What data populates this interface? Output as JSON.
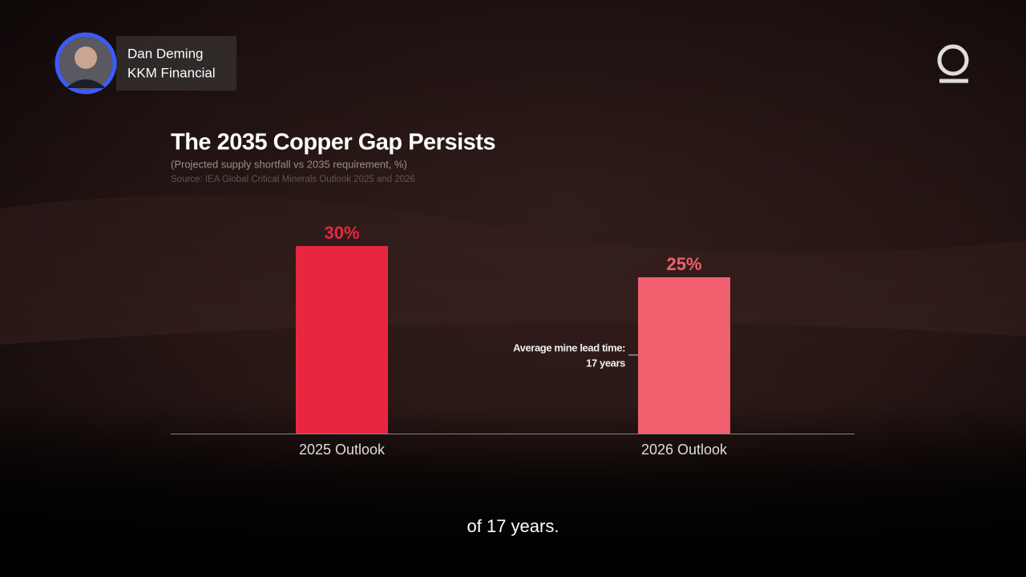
{
  "speaker": {
    "name": "Dan Deming",
    "affiliation": "KKM Financial"
  },
  "caption": "of 17 years.",
  "chart_data": {
    "type": "bar",
    "title": "The 2035 Copper Gap Persists",
    "subtitle": "(Projected supply shortfall vs 2035 requirement, %)",
    "source": "Source: IEA Global Critical Minerals Outlook 2025 and 2026",
    "categories": [
      "2025 Outlook",
      "2026 Outlook"
    ],
    "values": [
      30,
      25
    ],
    "value_labels": [
      "30%",
      "25%"
    ],
    "colors": [
      "#e8273f",
      "#f0606f"
    ],
    "annotation": [
      "Average mine lead time:",
      "17 years"
    ]
  }
}
